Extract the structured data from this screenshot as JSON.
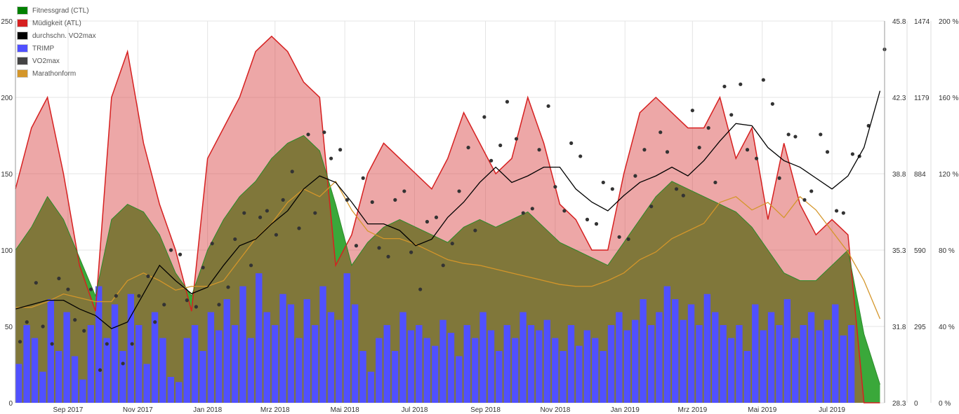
{
  "chart_data": {
    "type": "line",
    "start_date": "2017-07-17",
    "days_span": 760,
    "sample_interval_days": 14,
    "legend": [
      {
        "key": "ctl",
        "label": "Fitnessgrad (CTL)",
        "color": "#008000"
      },
      {
        "key": "atl",
        "label": "Müdigkeit (ATL)",
        "color": "#d62020"
      },
      {
        "key": "avg_vo2",
        "label": "durchschn. VO2max",
        "color": "#000000"
      },
      {
        "key": "trimp",
        "label": "TRIMP",
        "color": "#5050ff"
      },
      {
        "key": "vo2",
        "label": "VO2max",
        "color": "#444444"
      },
      {
        "key": "marathon",
        "label": "Marathonform",
        "color": "#d4962a"
      }
    ],
    "legend_position": "top-left",
    "x_ticks": [
      "Sep 2017",
      "Nov 2017",
      "Jan 2018",
      "Mrz 2018",
      "Mai 2018",
      "Jul 2018",
      "Sep 2018",
      "Nov 2018",
      "Jan 2019",
      "Mrz 2019",
      "Mai 2019",
      "Jul 2019"
    ],
    "x_tick_days": [
      46,
      107,
      168,
      227,
      288,
      349,
      411,
      472,
      533,
      592,
      653,
      714
    ],
    "y_left": {
      "ticks": [
        "0",
        "50",
        "100",
        "150",
        "200",
        "250"
      ],
      "range": [
        0,
        250
      ]
    },
    "y_vo2": {
      "ticks": [
        "28.3",
        "31.8",
        "35.3",
        "38.8",
        "42.3",
        "45.8"
      ],
      "range": [
        28.3,
        45.8
      ]
    },
    "y_trimp": {
      "ticks": [
        "0",
        "295",
        "590",
        "884",
        "1179",
        "1474"
      ],
      "range": [
        0,
        1474
      ]
    },
    "y_percent": {
      "ticks": [
        "0 %",
        "40 %",
        "80 %",
        "120 %",
        "160 %",
        "200 %"
      ],
      "range": [
        0,
        200
      ]
    },
    "ctl": [
      100,
      115,
      135,
      120,
      95,
      70,
      120,
      130,
      125,
      110,
      85,
      70,
      100,
      120,
      135,
      145,
      160,
      170,
      175,
      165,
      130,
      90,
      105,
      115,
      120,
      115,
      110,
      105,
      115,
      120,
      115,
      120,
      125,
      115,
      105,
      100,
      95,
      90,
      105,
      120,
      135,
      145,
      140,
      135,
      130,
      125,
      115,
      100,
      85,
      80,
      80,
      90,
      100,
      45,
      12
    ],
    "atl": [
      140,
      180,
      200,
      150,
      90,
      60,
      200,
      230,
      170,
      130,
      100,
      60,
      160,
      180,
      200,
      230,
      240,
      230,
      210,
      200,
      90,
      110,
      150,
      170,
      160,
      150,
      140,
      160,
      190,
      170,
      150,
      160,
      200,
      170,
      130,
      120,
      100,
      100,
      150,
      190,
      200,
      190,
      180,
      180,
      200,
      160,
      180,
      120,
      170,
      130,
      110,
      120,
      110,
      0,
      0
    ],
    "avg_vo2": [
      32.6,
      32.8,
      33.0,
      33.0,
      32.6,
      32.3,
      31.7,
      32.0,
      33.3,
      34.6,
      33.9,
      33.3,
      33.6,
      34.6,
      35.5,
      35.8,
      36.5,
      37.1,
      38.1,
      38.7,
      38.4,
      37.5,
      36.5,
      36.5,
      36.2,
      35.5,
      35.8,
      36.8,
      37.5,
      38.4,
      39.1,
      38.4,
      38.7,
      39.1,
      39.1,
      38.1,
      37.5,
      37.1,
      37.8,
      38.4,
      38.7,
      39.1,
      38.7,
      39.4,
      40.3,
      41.1,
      41.0,
      40.0,
      39.4,
      39.1,
      38.6,
      38.1,
      38.7,
      40.0,
      42.6
    ],
    "marathon": [
      50,
      50,
      53,
      57,
      55,
      53,
      53,
      64,
      68,
      64,
      59,
      61,
      61,
      64,
      75,
      86,
      94,
      105,
      112,
      108,
      116,
      101,
      90,
      86,
      86,
      83,
      79,
      75,
      73,
      72,
      70,
      68,
      66,
      64,
      62,
      61,
      61,
      64,
      68,
      75,
      79,
      86,
      90,
      94,
      105,
      108,
      101,
      105,
      97,
      108,
      101,
      90,
      79,
      64,
      44
    ],
    "vo2_points_a": [
      31.1,
      33.8,
      31.0,
      33.5,
      31.6,
      29.8,
      33.2,
      31.0,
      34.1,
      32.8,
      35.1,
      32.7,
      35.6,
      33.6,
      37.0,
      36.8,
      36.0,
      38.9,
      40.6,
      40.7,
      39.9,
      35.5,
      37.5,
      35.0,
      38.0,
      33.5,
      36.8,
      35.6,
      40.0,
      41.4,
      40.1,
      40.4,
      37.2,
      41.9,
      37.1,
      39.6,
      36.5,
      38.1,
      35.8,
      39.9,
      40.7,
      38.1,
      41.7,
      40.9,
      42.8,
      42.9,
      39.5,
      42.0,
      40.6,
      37.6,
      40.6,
      37.1,
      39.7,
      41.0,
      44.5
    ],
    "vo2_points_b": [
      32.0,
      31.8,
      34.0,
      32.1,
      33.5,
      31.0,
      30.1,
      33.2,
      32.0,
      35.3,
      33.0,
      34.5,
      32.8,
      35.8,
      34.6,
      37.1,
      37.6,
      36.3,
      37.0,
      39.5,
      37.6,
      38.6,
      35.4,
      37.6,
      35.2,
      36.6,
      34.6,
      38.0,
      36.2,
      39.4,
      42.1,
      37.0,
      39.9,
      38.2,
      40.2,
      36.7,
      38.4,
      35.9,
      38.7,
      37.3,
      39.8,
      37.8,
      40.0,
      38.4,
      41.5,
      39.9,
      43.1,
      38.6,
      40.5,
      38.0,
      39.8,
      37.0,
      39.6
    ],
    "trimp_weekly": [
      150,
      300,
      250,
      120,
      400,
      200,
      350,
      180,
      90,
      300,
      450,
      250,
      380,
      200,
      420,
      300,
      150,
      350,
      250,
      100,
      80,
      250,
      300,
      200,
      350,
      280,
      400,
      300,
      450,
      250,
      500,
      350,
      300,
      420,
      380,
      250,
      400,
      300,
      450,
      350,
      320,
      500,
      380,
      200,
      120,
      250,
      300,
      200,
      350,
      280,
      300,
      250,
      220,
      320,
      270,
      180,
      300,
      250,
      350,
      280,
      200,
      300,
      250,
      350,
      300,
      280,
      320,
      250,
      200,
      300,
      220,
      280,
      250,
      200,
      300,
      350,
      280,
      320,
      400,
      300,
      350,
      450,
      400,
      320,
      380,
      300,
      420,
      350,
      300,
      250,
      300,
      200,
      380,
      280,
      350,
      300,
      400,
      250,
      300,
      350,
      280,
      320,
      380,
      260,
      300
    ]
  }
}
